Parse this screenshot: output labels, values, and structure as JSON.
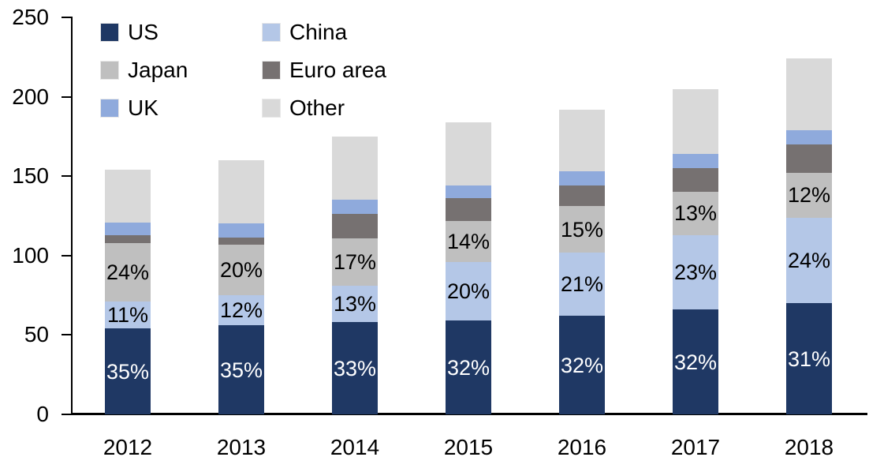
{
  "chart_data": {
    "type": "bar",
    "stacked": true,
    "title": "",
    "categories": [
      "2012",
      "2013",
      "2014",
      "2015",
      "2016",
      "2017",
      "2018"
    ],
    "series": [
      {
        "name": "US",
        "color": "#1F3864",
        "values": [
          54,
          56,
          58,
          59,
          62,
          66,
          70
        ],
        "labels": [
          "35%",
          "35%",
          "33%",
          "32%",
          "32%",
          "32%",
          "31%"
        ],
        "label_color": "#FFFFFF"
      },
      {
        "name": "China",
        "color": "#B4C7E7",
        "values": [
          17,
          19,
          23,
          37,
          40,
          47,
          54
        ],
        "labels": [
          "11%",
          "12%",
          "13%",
          "20%",
          "21%",
          "23%",
          "24%"
        ],
        "label_color": "#000000"
      },
      {
        "name": "Japan",
        "color": "#BFBFBF",
        "values": [
          37,
          32,
          30,
          26,
          29,
          27,
          28
        ],
        "labels": [
          "24%",
          "20%",
          "17%",
          "14%",
          "15%",
          "13%",
          "12%"
        ],
        "label_color": "#000000"
      },
      {
        "name": "Euro area",
        "color": "#767171",
        "values": [
          5,
          4.5,
          15,
          14,
          13,
          15,
          18
        ],
        "labels": null
      },
      {
        "name": "UK",
        "color": "#8FAADC",
        "values": [
          8,
          9,
          9,
          8,
          9,
          9,
          9
        ],
        "labels": null
      },
      {
        "name": "Other",
        "color": "#D9D9D9",
        "values": [
          33,
          39.5,
          40,
          40,
          39,
          41,
          45
        ],
        "labels": null
      }
    ],
    "totals": [
      154,
      160,
      175,
      184,
      192,
      205,
      224
    ],
    "y_axis": {
      "min": 0,
      "max": 250,
      "tick_step": 50,
      "tick_labels": [
        "0",
        "50",
        "100",
        "150",
        "200",
        "250"
      ]
    },
    "legend": {
      "position": "top-left",
      "columns": 2,
      "items": [
        "US",
        "China",
        "Japan",
        "Euro area",
        "UK",
        "Other"
      ]
    },
    "grid": false,
    "axis_color": "#000000",
    "background": "#FFFFFF"
  }
}
